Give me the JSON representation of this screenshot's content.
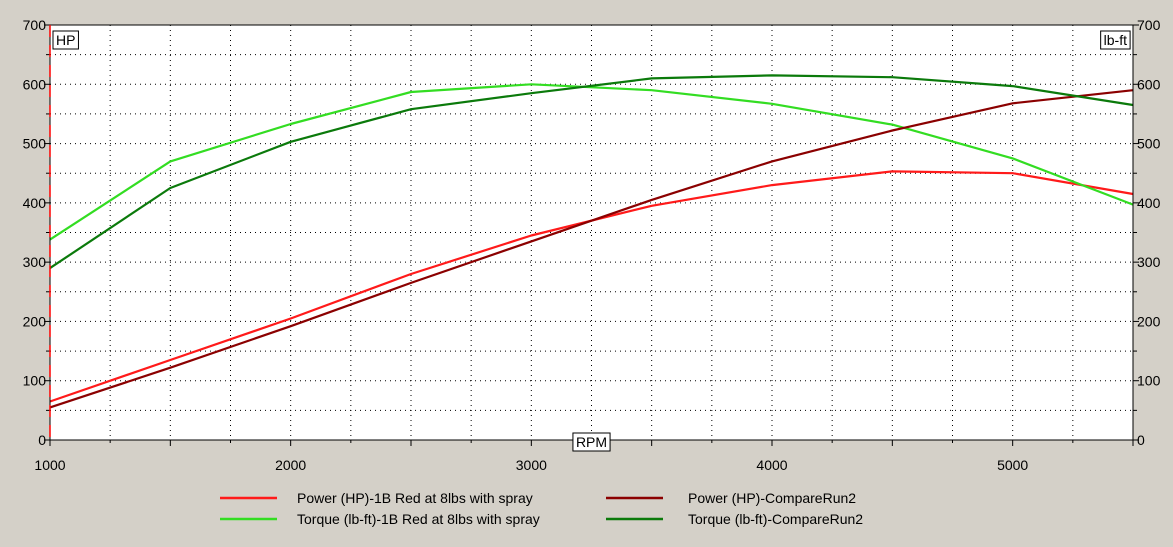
{
  "chart_data": {
    "type": "line",
    "title": "",
    "xlabel": "RPM",
    "ylabel_left": "HP",
    "ylabel_right": "lb-ft",
    "xlim": [
      1000,
      5500
    ],
    "ylim_left": [
      0,
      700
    ],
    "ylim_right": [
      0,
      700
    ],
    "x_ticks": [
      1000,
      2000,
      3000,
      4000,
      5000
    ],
    "y_ticks": [
      0,
      100,
      200,
      300,
      400,
      500,
      600,
      700
    ],
    "grid": true,
    "legend_position": "bottom",
    "series": [
      {
        "name": "Power (HP)-1B Red at 8lbs with spray",
        "color": "#ff1a1a",
        "axis": "left",
        "x": [
          1000,
          1500,
          2000,
          2500,
          3000,
          3500,
          4000,
          4500,
          5000,
          5500
        ],
        "y": [
          65,
          135,
          205,
          280,
          345,
          395,
          430,
          453,
          450,
          415
        ]
      },
      {
        "name": "Torque (lb-ft)-1B Red at 8lbs with spray",
        "color": "#33dd22",
        "axis": "right",
        "x": [
          1000,
          1500,
          2000,
          2500,
          3000,
          3500,
          4000,
          4500,
          5000,
          5500
        ],
        "y": [
          338,
          470,
          533,
          587,
          600,
          590,
          567,
          532,
          475,
          397
        ]
      },
      {
        "name": "Power (HP)-CompareRun2",
        "color": "#8b0000",
        "axis": "left",
        "x": [
          1000,
          1500,
          2000,
          2500,
          3000,
          3500,
          4000,
          4500,
          5000,
          5500
        ],
        "y": [
          55,
          122,
          192,
          265,
          335,
          405,
          470,
          522,
          568,
          590
        ]
      },
      {
        "name": "Torque (lb-ft)-CompareRun2",
        "color": "#0b7a0b",
        "axis": "right",
        "x": [
          1000,
          1500,
          2000,
          2500,
          3000,
          3500,
          4000,
          4500,
          5000,
          5500
        ],
        "y": [
          290,
          425,
          503,
          558,
          585,
          610,
          615,
          612,
          597,
          565
        ]
      }
    ]
  }
}
